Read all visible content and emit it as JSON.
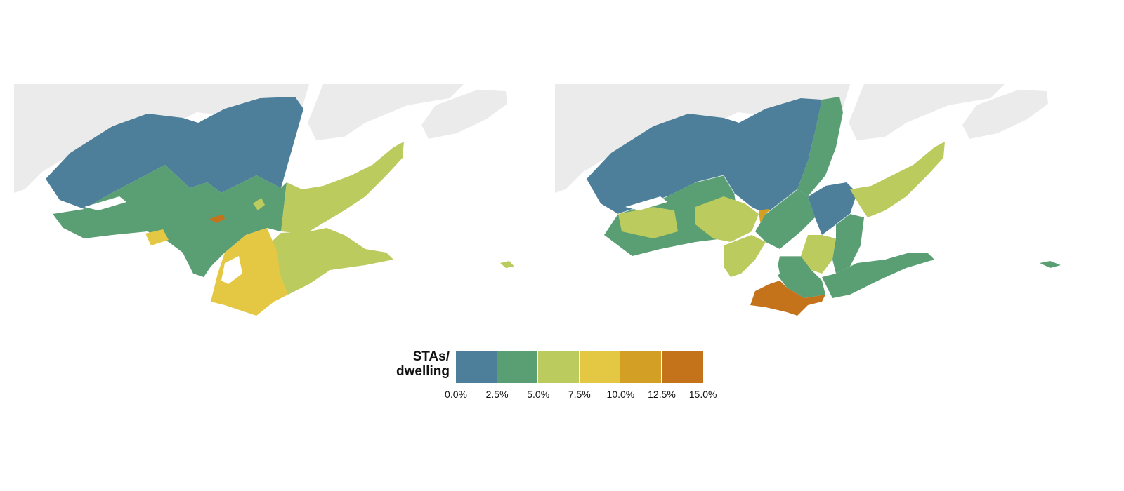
{
  "maps": [
    {
      "name": "left-map",
      "regions_shown": "coarse"
    },
    {
      "name": "right-map",
      "regions_shown": "fine"
    }
  ],
  "colors": {
    "background": "#ffffff",
    "land_other": "#ebebeb",
    "water": "#ffffff",
    "boundary": "#ffffff"
  },
  "legend": {
    "title_line1": "STAs/",
    "title_line2": "dwelling",
    "bins": [
      {
        "from": "0.0%",
        "to": "2.5%",
        "color": "#4d7f9b"
      },
      {
        "from": "2.5%",
        "to": "5.0%",
        "color": "#5a9f73"
      },
      {
        "from": "5.0%",
        "to": "7.5%",
        "color": "#bccb5e"
      },
      {
        "from": "7.5%",
        "to": "10.0%",
        "color": "#e4c843"
      },
      {
        "from": "10.0%",
        "to": "12.5%",
        "color": "#d39f25"
      },
      {
        "from": "12.5%",
        "to": "15.0%",
        "color": "#c4731b"
      }
    ],
    "ticks": [
      "0.0%",
      "2.5%",
      "5.0%",
      "7.5%",
      "10.0%",
      "12.5%",
      "15.0%"
    ]
  }
}
